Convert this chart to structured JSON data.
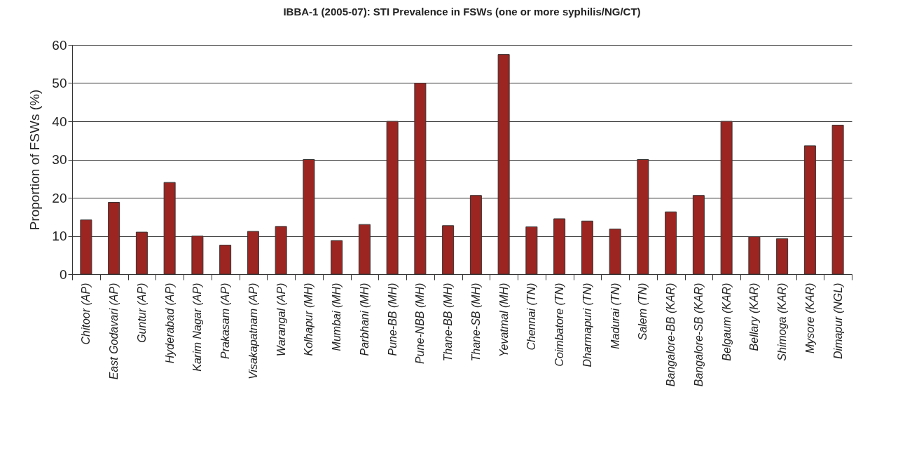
{
  "chart_data": {
    "type": "bar",
    "title": "IBBA-1 (2005-07): STI Prevalence in FSWs (one or more syphilis/NG/CT)",
    "ylabel": "Proportion of FSWs (%)",
    "categories": [
      "Chitoor (AP)",
      "East Godavari (AP)",
      "Guntur (AP)",
      "Hyderabad (AP)",
      "Karim Nagar (AP)",
      "Prakasam (AP)",
      "Visakapatnam (AP)",
      "Warangal (AP)",
      "Kolhapur (MH)",
      "Mumbai (MH)",
      "Parbhani (MH)",
      "Pune-BB (MH)",
      "Pune-NBB (MH)",
      "Thane-BB (MH)",
      "Thane-SB (MH)",
      "Yevatmal (MH)",
      "Chennai (TN)",
      "Coimbatore (TN)",
      "Dharmapuri (TN)",
      "Madurai (TN)",
      "Salem (TN)",
      "Bangalore-BB (KAR)",
      "Bangalore-SB (KAR)",
      "Belgaum (KAR)",
      "Bellary (KAR)",
      "Shimoga (KAR)",
      "Mysore (KAR)",
      "Dimapur (NGL)"
    ],
    "values": [
      14.2,
      18.8,
      11,
      24,
      10,
      7.6,
      11.2,
      12.5,
      30,
      8.8,
      13,
      40,
      50,
      12.7,
      20.6,
      57.5,
      12.4,
      14.5,
      13.9,
      11.8,
      30,
      16.3,
      20.6,
      40,
      9.8,
      9.3,
      33.6,
      39
    ],
    "color": "#9c2521",
    "ylim": [
      0,
      60
    ],
    "yticks": [
      0,
      10,
      20,
      30,
      40,
      50,
      60
    ],
    "grid": "y"
  }
}
